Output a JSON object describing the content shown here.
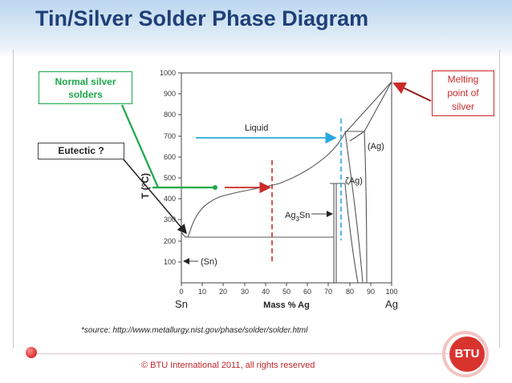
{
  "slide": {
    "title": "Tin/Silver Solder Phase Diagram",
    "source": "*source: http://www.metallurgy.nist.gov/phase/solder/solder.html",
    "copyright": "© BTU International 2011, all rights reserved",
    "logo_text": "BTU",
    "colors": {
      "title": "#1f3f78",
      "green": "#1fa84a",
      "red": "#cc2a2a",
      "blue": "#2aa7e0",
      "copyright": "#c0262b"
    }
  },
  "callouts": {
    "normal_silver": [
      "Normal silver",
      "solders"
    ],
    "eutectic": "Eutectic ?",
    "melting_point": [
      "Melting",
      "point of",
      "silver"
    ]
  },
  "diagram": {
    "y_axis": {
      "label": "T (°C)",
      "ticks": [
        "100",
        "200",
        "300",
        "400",
        "500",
        "600",
        "700",
        "800",
        "900",
        "1000"
      ]
    },
    "x_axis": {
      "label": "Mass % Ag",
      "ticks": [
        "0",
        "10",
        "20",
        "30",
        "40",
        "50",
        "60",
        "70",
        "80",
        "90",
        "100"
      ],
      "left_element": "Sn",
      "right_element": "Ag"
    },
    "phase_labels": {
      "liquid": "Liquid",
      "ag": "(Ag)",
      "zeta": "ζAg)",
      "compound_main": "Ag",
      "compound_sub": "3",
      "compound_rest": "Sn",
      "sn": "(Sn)"
    }
  }
}
